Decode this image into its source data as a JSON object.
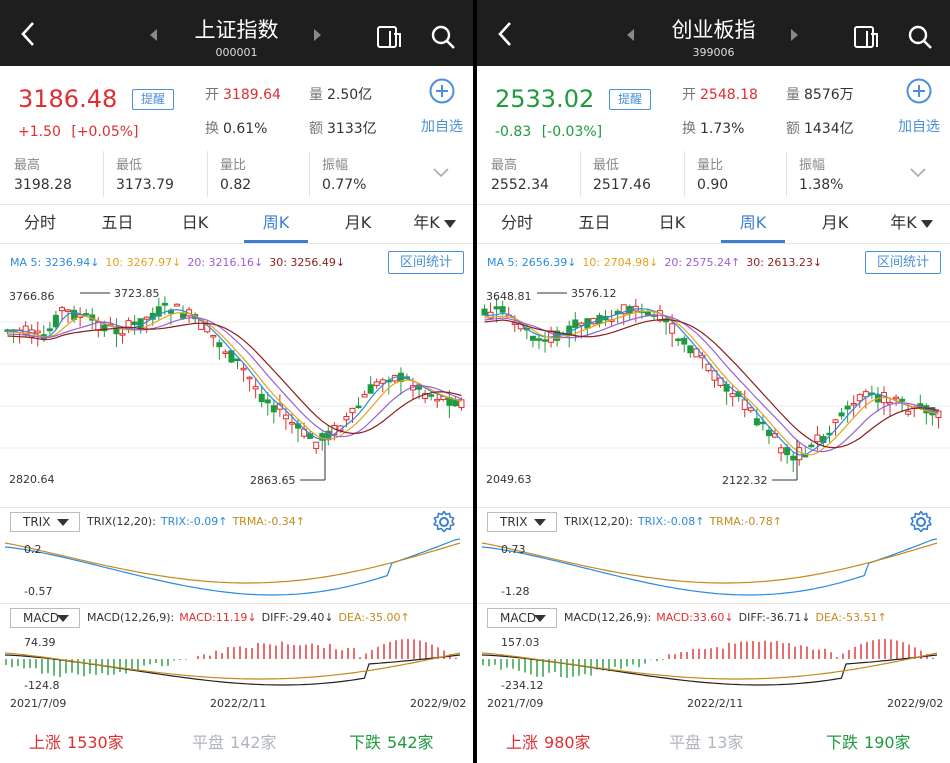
{
  "panels": [
    {
      "title": "上证指数",
      "code": "000001",
      "price": "3186.48",
      "remind_label": "提醒",
      "change": "+1.50",
      "change_pct": "[+0.05%]",
      "trend": "up",
      "open_label": "开",
      "open": "3189.64",
      "volume_label": "量",
      "volume": "2.50亿",
      "turnover_label": "换",
      "turnover": "0.61%",
      "amount_label": "额",
      "amount": "3133亿",
      "add_label": "加自选",
      "stats": [
        {
          "label": "最高",
          "value": "3198.28",
          "color": "up"
        },
        {
          "label": "最低",
          "value": "3173.79",
          "color": "down"
        },
        {
          "label": "量比",
          "value": "0.82",
          "color": "neutral"
        },
        {
          "label": "振幅",
          "value": "0.77%",
          "color": "neutral"
        }
      ],
      "tabs": [
        "分时",
        "五日",
        "日K",
        "周K",
        "月K",
        "年K"
      ],
      "active_tab": 3,
      "ma": [
        {
          "text": "MA 5: 3236.94↓",
          "color": "#2a8be0"
        },
        {
          "text": "10: 3267.97↓",
          "color": "#e5a21b"
        },
        {
          "text": "20: 3216.16↓",
          "color": "#9b5fd6"
        },
        {
          "text": "30: 3256.49↓",
          "color": "#8a1f1f"
        }
      ],
      "range_label": "区间统计",
      "chart_top": "3766.86",
      "chart_bottom": "2820.64",
      "high_marker": "3723.85",
      "low_marker": "2863.65",
      "trix_select": "TRIX",
      "trix_info": [
        {
          "text": "TRIX(12,20):",
          "color": "#333333"
        },
        {
          "text": "TRIX:-0.09↑",
          "color": "#2a8be0"
        },
        {
          "text": "TRMA:-0.34↑",
          "color": "#c48a1a"
        }
      ],
      "trix_top": "0.2",
      "trix_bottom": "-0.57",
      "macd_select": "MACD",
      "macd_info": [
        {
          "text": "MACD(12,26,9):",
          "color": "#333333"
        },
        {
          "text": "MACD:11.19↓",
          "color": "#e02e30"
        },
        {
          "text": "DIFF:-29.40↓",
          "color": "#333333"
        },
        {
          "text": "DEA:-35.00↑",
          "color": "#c48a1a"
        }
      ],
      "macd_top": "74.39",
      "macd_bottom": "-124.8",
      "dates": [
        "2021/7/09",
        "2022/2/11",
        "2022/9/02"
      ],
      "footer": {
        "rise_label": "上涨",
        "rise": "1530家",
        "flat_label": "平盘",
        "flat": "142家",
        "fall_label": "下跌",
        "fall": "542家"
      }
    },
    {
      "title": "创业板指",
      "code": "399006",
      "price": "2533.02",
      "remind_label": "提醒",
      "change": "-0.83",
      "change_pct": "[-0.03%]",
      "trend": "down",
      "open_label": "开",
      "open": "2548.18",
      "volume_label": "量",
      "volume": "8576万",
      "turnover_label": "换",
      "turnover": "1.73%",
      "amount_label": "额",
      "amount": "1434亿",
      "add_label": "加自选",
      "stats": [
        {
          "label": "最高",
          "value": "2552.34",
          "color": "up"
        },
        {
          "label": "最低",
          "value": "2517.46",
          "color": "down"
        },
        {
          "label": "量比",
          "value": "0.90",
          "color": "neutral"
        },
        {
          "label": "振幅",
          "value": "1.38%",
          "color": "neutral"
        }
      ],
      "tabs": [
        "分时",
        "五日",
        "日K",
        "周K",
        "月K",
        "年K"
      ],
      "active_tab": 3,
      "ma": [
        {
          "text": "MA 5: 2656.39↓",
          "color": "#2a8be0"
        },
        {
          "text": "10: 2704.98↓",
          "color": "#e5a21b"
        },
        {
          "text": "20: 2575.24↑",
          "color": "#9b5fd6"
        },
        {
          "text": "30: 2613.23↓",
          "color": "#8a1f1f"
        }
      ],
      "range_label": "区间统计",
      "chart_top": "3648.81",
      "chart_bottom": "2049.63",
      "high_marker": "3576.12",
      "low_marker": "2122.32",
      "trix_select": "TRIX",
      "trix_info": [
        {
          "text": "TRIX(12,20):",
          "color": "#333333"
        },
        {
          "text": "TRIX:-0.08↑",
          "color": "#2a8be0"
        },
        {
          "text": "TRMA:-0.78↑",
          "color": "#c48a1a"
        }
      ],
      "trix_top": "0.73",
      "trix_bottom": "-1.28",
      "macd_select": "MACD",
      "macd_info": [
        {
          "text": "MACD(12,26,9):",
          "color": "#333333"
        },
        {
          "text": "MACD:33.60↓",
          "color": "#e02e30"
        },
        {
          "text": "DIFF:-36.71↓",
          "color": "#333333"
        },
        {
          "text": "DEA:-53.51↑",
          "color": "#c48a1a"
        }
      ],
      "macd_top": "157.03",
      "macd_bottom": "-234.12",
      "dates": [
        "2021/7/09",
        "2022/2/11",
        "2022/9/02"
      ],
      "footer": {
        "rise_label": "上涨",
        "rise": "980家",
        "flat_label": "平盘",
        "flat": "13家",
        "fall_label": "下跌",
        "fall": "190家"
      }
    }
  ],
  "colors": {
    "up": "#e02e30",
    "down": "#1e9b3e",
    "accent": "#3b7fd1",
    "ma5": "#2a8be0",
    "ma10": "#e5a21b",
    "ma20": "#9b5fd6",
    "ma30": "#8a1f1f"
  }
}
